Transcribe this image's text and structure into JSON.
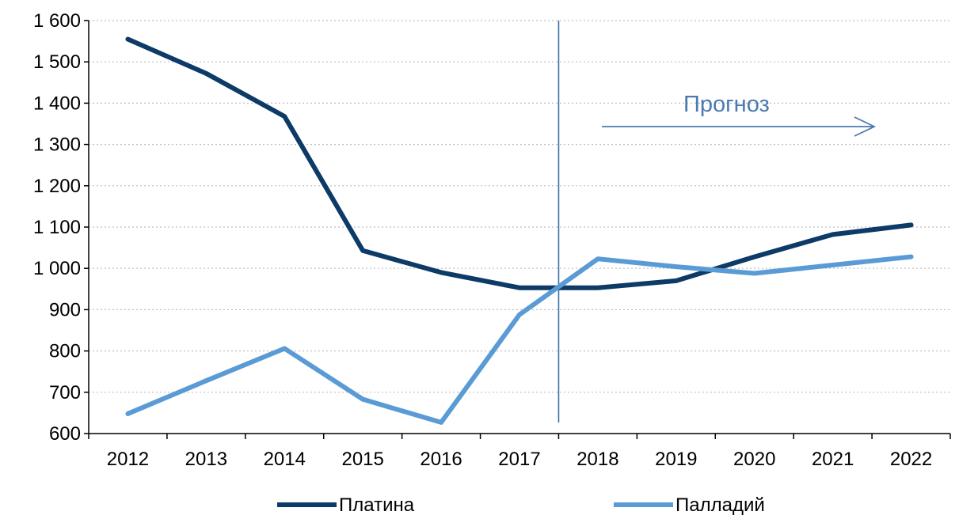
{
  "chart_data": {
    "type": "line",
    "title": "",
    "xlabel": "",
    "ylabel": "",
    "x": [
      "2012",
      "2013",
      "2014",
      "2015",
      "2016",
      "2017",
      "2018",
      "2019",
      "2020",
      "2021",
      "2022"
    ],
    "ylim": [
      600,
      1600
    ],
    "yticks": [
      "600",
      "700",
      "800",
      "900",
      "1 000",
      "1 100",
      "1 200",
      "1 300",
      "1 400",
      "1 500",
      "1 600"
    ],
    "grid": true,
    "legend_position": "bottom",
    "forecast_start_after": "2017",
    "annotation": "Прогноз",
    "series": [
      {
        "name": "Платина",
        "color": "#0d3a66",
        "values": [
          1555,
          1472,
          1368,
          1043,
          990,
          953,
          953,
          970,
          1028,
          1082,
          1105
        ]
      },
      {
        "name": "Палладий",
        "color": "#5b9bd5",
        "values": [
          648,
          728,
          806,
          683,
          627,
          888,
          1023,
          1004,
          988,
          1008,
          1028
        ]
      }
    ],
    "colors": {
      "annotation": "#4a7ab0",
      "divider": "#3a6ea5",
      "grid": "#bfbfbf",
      "axis": "#000000"
    }
  }
}
